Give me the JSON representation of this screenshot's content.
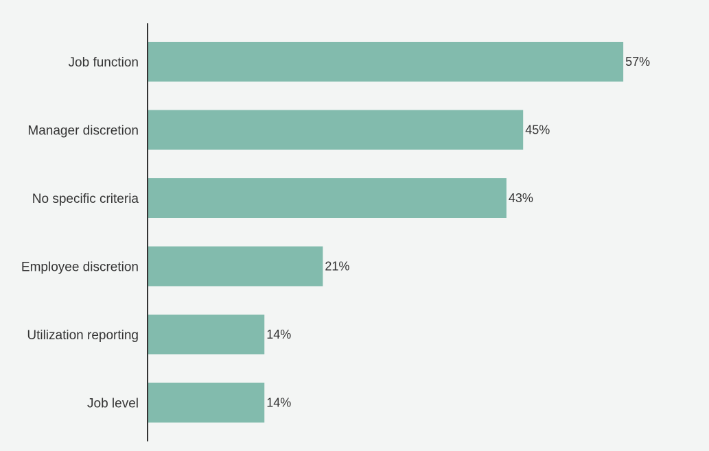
{
  "chart_data": {
    "type": "bar",
    "orientation": "horizontal",
    "title": "",
    "xlabel": "",
    "ylabel": "",
    "categories": [
      "Job function",
      "Manager discretion",
      "No specific criteria",
      "Employee discretion",
      "Utilization reporting",
      "Job level"
    ],
    "values": [
      57,
      45,
      43,
      21,
      14,
      14
    ],
    "value_labels": [
      "57%",
      "45%",
      "43%",
      "21%",
      "14%",
      "14%"
    ],
    "xlim": [
      0,
      100
    ],
    "grid": false,
    "legend": "none",
    "bar_color": "#82bbad",
    "axis_color": "#333333"
  }
}
